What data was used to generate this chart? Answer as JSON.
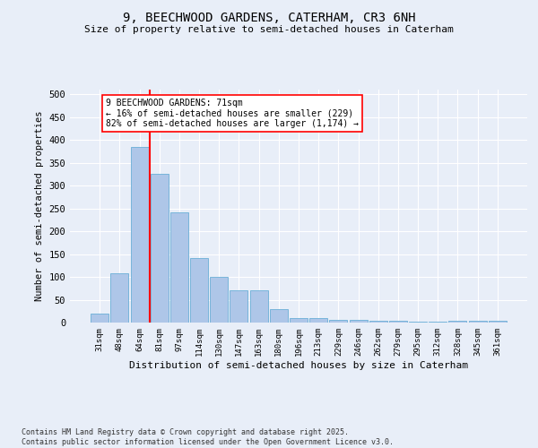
{
  "title_line1": "9, BEECHWOOD GARDENS, CATERHAM, CR3 6NH",
  "title_line2": "Size of property relative to semi-detached houses in Caterham",
  "xlabel": "Distribution of semi-detached houses by size in Caterham",
  "ylabel": "Number of semi-detached properties",
  "categories": [
    "31sqm",
    "48sqm",
    "64sqm",
    "81sqm",
    "97sqm",
    "114sqm",
    "130sqm",
    "147sqm",
    "163sqm",
    "180sqm",
    "196sqm",
    "213sqm",
    "229sqm",
    "246sqm",
    "262sqm",
    "279sqm",
    "295sqm",
    "312sqm",
    "328sqm",
    "345sqm",
    "361sqm"
  ],
  "values": [
    20,
    107,
    385,
    325,
    241,
    141,
    101,
    70,
    70,
    30,
    9,
    9,
    6,
    6,
    3,
    3,
    1,
    1,
    3,
    3,
    3
  ],
  "bar_color": "#aec6e8",
  "bar_edge_color": "#6aaed6",
  "vline_color": "red",
  "vline_x_index": 2,
  "annotation_title": "9 BEECHWOOD GARDENS: 71sqm",
  "annotation_line1": "← 16% of semi-detached houses are smaller (229)",
  "annotation_line2": "82% of semi-detached houses are larger (1,174) →",
  "annotation_box_color": "white",
  "annotation_box_edge_color": "red",
  "ylim": [
    0,
    510
  ],
  "yticks": [
    0,
    50,
    100,
    150,
    200,
    250,
    300,
    350,
    400,
    450,
    500
  ],
  "footer_line1": "Contains HM Land Registry data © Crown copyright and database right 2025.",
  "footer_line2": "Contains public sector information licensed under the Open Government Licence v3.0.",
  "bg_color": "#e8eef8",
  "plot_bg_color": "#e8eef8",
  "grid_color": "#ffffff"
}
